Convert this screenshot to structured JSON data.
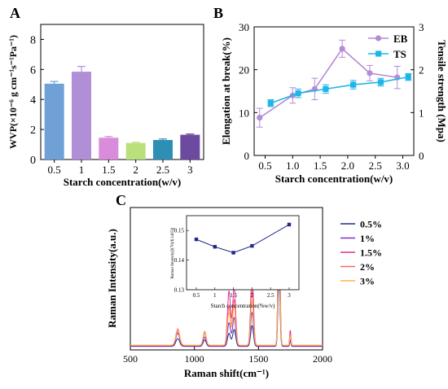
{
  "panels": {
    "a": {
      "letter": "A"
    },
    "b": {
      "letter": "B"
    },
    "c": {
      "letter": "C"
    }
  },
  "chart_data": [
    {
      "panel": "A",
      "type": "bar",
      "xlabel": "Starch concentration(w/v)",
      "ylabel": "WVP(×10⁻⁶ g cm⁻¹s⁻¹Pa⁻¹)",
      "categories": [
        "0.5",
        "1",
        "1.5",
        "2",
        "2.5",
        "3"
      ],
      "values": [
        5.05,
        5.85,
        1.45,
        1.1,
        1.3,
        1.65
      ],
      "errors": [
        0.15,
        0.35,
        0.08,
        0.05,
        0.07,
        0.05
      ],
      "colors": [
        "#6fa0d6",
        "#b08fd6",
        "#d98cdc",
        "#b9e07a",
        "#2e8fb5",
        "#6b4aa0"
      ],
      "ylim": [
        0,
        9
      ],
      "yticks": [
        "0",
        "2",
        "4",
        "6",
        "8"
      ]
    },
    {
      "panel": "B",
      "type": "line",
      "xlabel": "Starch concentration(w/v)",
      "ylabel": "Elongation at break(%)",
      "ylabel_right": "Tensile strength (Mpa)",
      "xlim": [
        0.3,
        3.2
      ],
      "xticks": [
        "0.5",
        "1.0",
        "1.5",
        "2.0",
        "2.5",
        "3.0"
      ],
      "ylim": [
        0,
        30
      ],
      "yticks": [
        "0",
        "10",
        "20",
        "30"
      ],
      "ylim_right": [
        0,
        3
      ],
      "yticks_right": [
        "0",
        "1",
        "2",
        "3"
      ],
      "legend_position": "top-right",
      "series": [
        {
          "name": "EB",
          "axis": "left",
          "color": "#b48bd6",
          "marker": "circle",
          "x": [
            0.4,
            1.0,
            1.4,
            1.9,
            2.4,
            2.9
          ],
          "y": [
            8.8,
            14.0,
            15.5,
            24.9,
            19.2,
            18.2
          ],
          "err": [
            2.2,
            1.8,
            2.5,
            2.0,
            1.8,
            2.6
          ]
        },
        {
          "name": "TS",
          "axis": "right",
          "color": "#1fb5e8",
          "marker": "square",
          "x": [
            0.6,
            1.1,
            1.6,
            2.1,
            2.6,
            3.1
          ],
          "y": [
            1.22,
            1.45,
            1.55,
            1.65,
            1.71,
            1.83
          ],
          "err": [
            0.08,
            0.1,
            0.1,
            0.1,
            0.09,
            0.08
          ]
        }
      ]
    },
    {
      "panel": "C",
      "type": "line",
      "xlabel": "Raman shift(cm⁻¹)",
      "ylabel": "Raman Intensity(a.u.)",
      "xlim": [
        500,
        2000
      ],
      "xticks": [
        "500",
        "1000",
        "1500",
        "2000"
      ],
      "legend_position": "top-right",
      "peaks": [
        {
          "pos": 870,
          "width": 15
        },
        {
          "pos": 1080,
          "width": 12
        },
        {
          "pos": 1270,
          "width": 12
        },
        {
          "pos": 1310,
          "width": 12
        },
        {
          "pos": 1450,
          "width": 11
        },
        {
          "pos": 1660,
          "width": 8
        },
        {
          "pos": 1748,
          "width": 5
        }
      ],
      "series": [
        {
          "name": "0.5%",
          "color": "#1f2a8a",
          "heights": [
            0.06,
            0.05,
            0.1,
            0.13,
            0.16,
            0.55,
            0.04
          ]
        },
        {
          "name": "1%",
          "color": "#7b2fd6",
          "heights": [
            0.1,
            0.07,
            0.18,
            0.22,
            0.26,
            0.95,
            0.05
          ]
        },
        {
          "name": "1.5%",
          "color": "#e0309a",
          "heights": [
            0.13,
            0.11,
            0.42,
            0.45,
            0.56,
            1.0,
            0.12
          ]
        },
        {
          "name": "2%",
          "color": "#ff6a5c",
          "heights": [
            0.11,
            0.09,
            0.3,
            0.35,
            0.42,
            0.9,
            0.09
          ]
        },
        {
          "name": "3%",
          "color": "#ffb347",
          "heights": [
            0.12,
            0.1,
            0.25,
            0.3,
            0.34,
            0.8,
            0.07
          ]
        }
      ],
      "inset": {
        "type": "line",
        "xlabel": "Starch concentration(%w/v)",
        "ylabel": "Raman Intensity[I(70)/I(1435)]",
        "x": [
          0.5,
          1,
          1.5,
          2,
          3
        ],
        "y": [
          0.147,
          0.1445,
          0.1425,
          0.1448,
          0.152
        ],
        "xticks": [
          "0.5",
          "1",
          "1.5",
          "2",
          "2.5",
          "3"
        ],
        "ylim": [
          0.13,
          0.155
        ],
        "yticks": [
          "0.13",
          "0.14",
          "0.15"
        ],
        "color": "#1f2a8a"
      }
    }
  ]
}
